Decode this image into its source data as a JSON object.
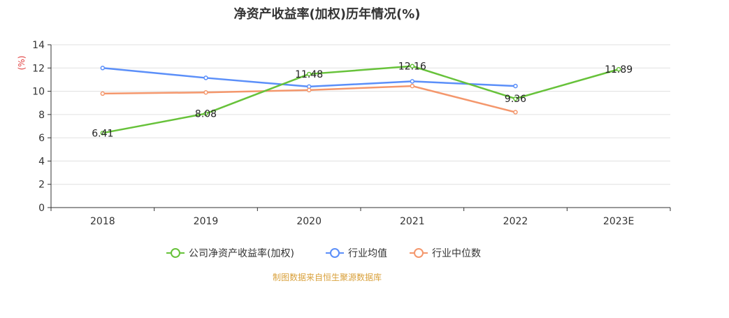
{
  "chart_data": {
    "type": "line",
    "title": "净资产收益率(加权)历年情况(%)",
    "ylabel": "(%)",
    "xlabel": "",
    "categories": [
      "2018",
      "2019",
      "2020",
      "2021",
      "2022",
      "2023E"
    ],
    "ylim": [
      0,
      14
    ],
    "yticks": [
      0,
      2,
      4,
      6,
      8,
      10,
      12,
      14
    ],
    "grid": true,
    "legend_position": "bottom",
    "series": [
      {
        "name": "公司净资产收益率(加权)",
        "color": "#67c23a",
        "values": [
          6.41,
          8.08,
          11.48,
          12.16,
          9.36,
          11.89
        ],
        "labels": [
          "6.41",
          "8.08",
          "11.48",
          "12.16",
          "9.36",
          "11.89"
        ],
        "show_labels": true
      },
      {
        "name": "行业均值",
        "color": "#5b8ff9",
        "values": [
          12.0,
          11.15,
          10.4,
          10.85,
          10.45,
          null
        ],
        "show_labels": false
      },
      {
        "name": "行业中位数",
        "color": "#f4976c",
        "values": [
          9.8,
          9.9,
          10.1,
          10.45,
          8.2,
          null
        ],
        "show_labels": false
      }
    ]
  },
  "source_note": "制图数据来自恒生聚源数据库"
}
